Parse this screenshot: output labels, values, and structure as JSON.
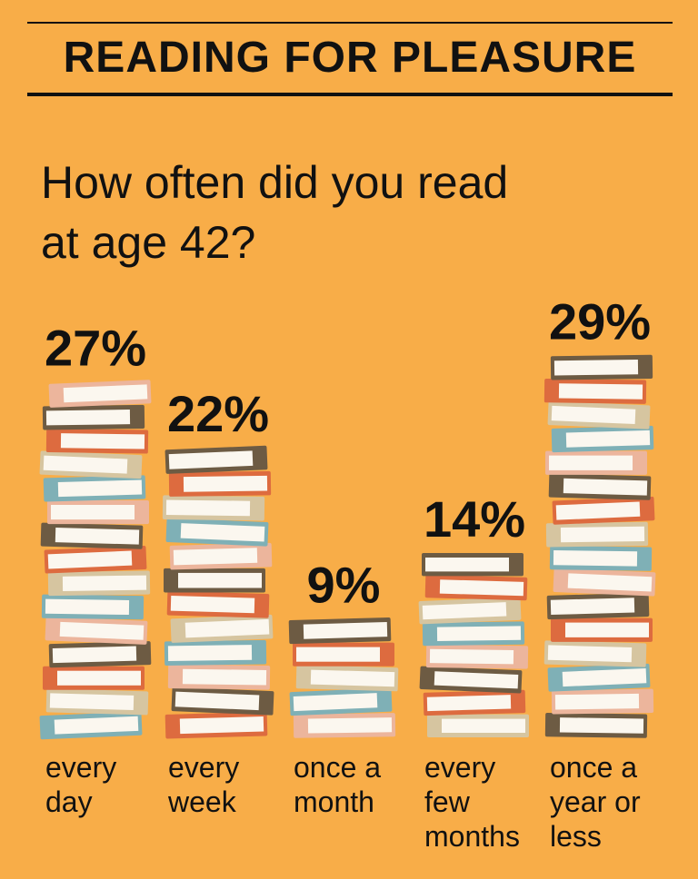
{
  "chart_data": {
    "type": "bar",
    "title": "READING FOR PLEASURE",
    "subtitle": "How often did you read at age 42?",
    "categories": [
      "every day",
      "every week",
      "once a month",
      "every few months",
      "once a year or less"
    ],
    "values": [
      27,
      22,
      9,
      14,
      29
    ],
    "value_labels": [
      "27%",
      "22%",
      "9%",
      "14%",
      "29%"
    ],
    "colors": [
      "#7fb0b6",
      "#d6c5a0",
      "#dd6b3f",
      "#6d5b43",
      "#ecb59c"
    ]
  }
}
